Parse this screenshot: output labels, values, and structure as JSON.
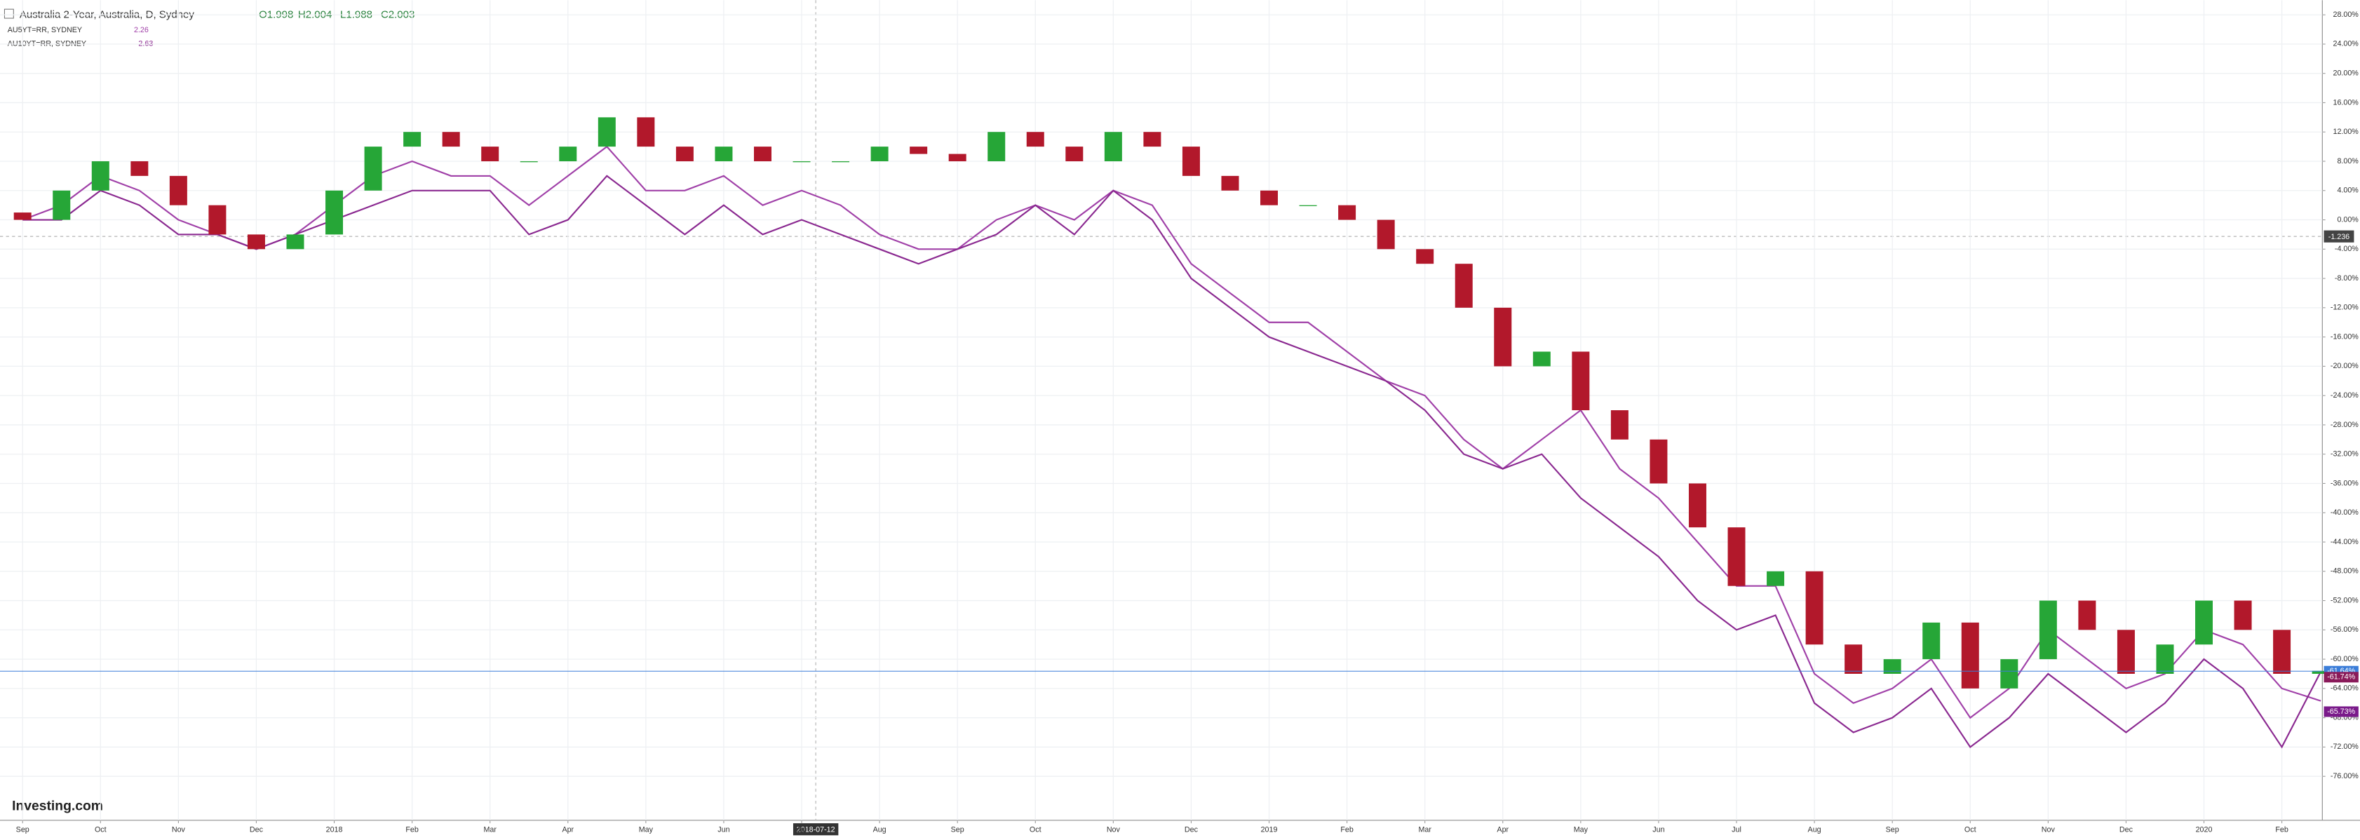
{
  "header": {
    "title": "Australia 2-Year, Australia, D, Sydney",
    "ohlc": [
      "O1.998",
      "H2.004",
      "L1.988",
      "C2.003"
    ]
  },
  "legend": [
    {
      "name": "AU5YT=RR, SYDNEY",
      "value": "2.26"
    },
    {
      "name": "AU10YT=RR, SYDNEY",
      "value": "2.63"
    }
  ],
  "logo": "Investing.com",
  "crosshair": {
    "x_label": "2018-07-12",
    "y_label": "-1.236"
  },
  "chart_data": {
    "type": "candlestick",
    "xlim": [
      -0.29,
      29.52
    ],
    "ylim": [
      -82,
      30
    ],
    "grid": true,
    "xticks": [
      {
        "value": 0,
        "label": "Sep"
      },
      {
        "value": 1,
        "label": "Oct"
      },
      {
        "value": 2,
        "label": "Nov"
      },
      {
        "value": 3,
        "label": "Dec"
      },
      {
        "value": 4,
        "label": "2018"
      },
      {
        "value": 5,
        "label": "Feb"
      },
      {
        "value": 6,
        "label": "Mar"
      },
      {
        "value": 7,
        "label": "Apr"
      },
      {
        "value": 8,
        "label": "May"
      },
      {
        "value": 9,
        "label": "Jun"
      },
      {
        "value": 10,
        "label": "Jul"
      },
      {
        "value": 11,
        "label": "Aug"
      },
      {
        "value": 12,
        "label": "Sep"
      },
      {
        "value": 13,
        "label": "Oct"
      },
      {
        "value": 14,
        "label": "Nov"
      },
      {
        "value": 15,
        "label": "Dec"
      },
      {
        "value": 16,
        "label": "2019"
      },
      {
        "value": 17,
        "label": "Feb"
      },
      {
        "value": 18,
        "label": "Mar"
      },
      {
        "value": 19,
        "label": "Apr"
      },
      {
        "value": 20,
        "label": "May"
      },
      {
        "value": 21,
        "label": "Jun"
      },
      {
        "value": 22,
        "label": "Jul"
      },
      {
        "value": 23,
        "label": "Aug"
      },
      {
        "value": 24,
        "label": "Sep"
      },
      {
        "value": 25,
        "label": "Oct"
      },
      {
        "value": 26,
        "label": "Nov"
      },
      {
        "value": 27,
        "label": "Dec"
      },
      {
        "value": 28,
        "label": "2020"
      },
      {
        "value": 29,
        "label": "Feb"
      }
    ],
    "yticks": [
      {
        "value": 28,
        "label": "28.00%"
      },
      {
        "value": 24,
        "label": "24.00%"
      },
      {
        "value": 20,
        "label": "20.00%"
      },
      {
        "value": 16,
        "label": "16.00%"
      },
      {
        "value": 12,
        "label": "12.00%"
      },
      {
        "value": 8,
        "label": "8.00%"
      },
      {
        "value": 4,
        "label": "4.00%"
      },
      {
        "value": 0,
        "label": "0.00%"
      },
      {
        "value": -4,
        "label": "-4.00%"
      },
      {
        "value": -8,
        "label": "-8.00%"
      },
      {
        "value": -12,
        "label": "-12.00%"
      },
      {
        "value": -16,
        "label": "-16.00%"
      },
      {
        "value": -20,
        "label": "-20.00%"
      },
      {
        "value": -24,
        "label": "-24.00%"
      },
      {
        "value": -28,
        "label": "-28.00%"
      },
      {
        "value": -32,
        "label": "-32.00%"
      },
      {
        "value": -36,
        "label": "-36.00%"
      },
      {
        "value": -40,
        "label": "-40.00%"
      },
      {
        "value": -44,
        "label": "-44.00%"
      },
      {
        "value": -48,
        "label": "-48.00%"
      },
      {
        "value": -52,
        "label": "-52.00%"
      },
      {
        "value": -56,
        "label": "-56.00%"
      },
      {
        "value": -60,
        "label": "-60.00%"
      },
      {
        "value": -64,
        "label": "-64.00%"
      },
      {
        "value": -68,
        "label": "-68.00%"
      },
      {
        "value": -72,
        "label": "-72.00%"
      },
      {
        "value": -76,
        "label": "-76.00%"
      }
    ],
    "x": [
      0,
      0.5,
      1,
      1.5,
      2,
      2.5,
      3,
      3.5,
      4,
      4.5,
      5,
      5.5,
      6,
      6.5,
      7,
      7.5,
      8,
      8.5,
      9,
      9.5,
      10,
      10.5,
      11,
      11.5,
      12,
      12.5,
      13,
      13.5,
      14,
      14.5,
      15,
      15.5,
      16,
      16.5,
      17,
      17.5,
      18,
      18.5,
      19,
      19.5,
      20,
      20.5,
      21,
      21.5,
      22,
      22.5,
      23,
      23.5,
      24,
      24.5,
      25,
      25.5,
      26,
      26.5,
      27,
      27.5,
      28,
      28.5,
      29,
      29.5
    ],
    "open": [
      1,
      0,
      4,
      8,
      6,
      2,
      -2,
      -4,
      -2,
      4,
      10,
      12,
      10,
      8,
      8,
      10,
      14,
      10,
      8,
      10,
      8,
      8,
      8,
      10,
      9,
      8,
      12,
      10,
      8,
      12,
      10,
      6,
      4,
      2,
      2,
      0,
      -4,
      -6,
      -12,
      -20,
      -18,
      -26,
      -30,
      -36,
      -42,
      -50,
      -48,
      -58,
      -62,
      -60,
      -55,
      -64,
      -60,
      -52,
      -56,
      -62,
      -58,
      -52,
      -56,
      -62
    ],
    "close": [
      0,
      4,
      8,
      6,
      2,
      -2,
      -4,
      -2,
      4,
      10,
      12,
      10,
      8,
      8,
      10,
      14,
      10,
      8,
      10,
      8,
      8,
      8,
      10,
      9,
      8,
      12,
      10,
      8,
      12,
      10,
      6,
      4,
      2,
      2,
      0,
      -4,
      -6,
      -12,
      -20,
      -18,
      -26,
      -30,
      -36,
      -42,
      -50,
      -48,
      -58,
      -62,
      -60,
      -55,
      -64,
      -60,
      -52,
      -56,
      -62,
      -58,
      -52,
      -56,
      -62,
      -61.6
    ],
    "up_color": "#26a637",
    "down_color": "#b2182b",
    "series": [
      {
        "name": "AU5YT=RR, SYDNEY",
        "color": "#a040a8",
        "values": [
          0,
          2,
          6,
          4,
          0,
          -2,
          -4,
          -2,
          2,
          6,
          8,
          6,
          6,
          2,
          6,
          10,
          4,
          4,
          6,
          2,
          4,
          2,
          -2,
          -4,
          -4,
          0,
          2,
          0,
          4,
          2,
          -6,
          -10,
          -14,
          -14,
          -18,
          -22,
          -24,
          -30,
          -34,
          -30,
          -26,
          -34,
          -38,
          -44,
          -50,
          -50,
          -62,
          -66,
          -64,
          -60,
          -68,
          -64,
          -56,
          -60,
          -64,
          -62,
          -56,
          -58,
          -64,
          -65.7
        ]
      },
      {
        "name": "AU10YT=RR, SYDNEY",
        "color": "#8a2890",
        "values": [
          0,
          0,
          4,
          2,
          -2,
          -2,
          -4,
          -2,
          0,
          2,
          4,
          4,
          4,
          -2,
          0,
          6,
          2,
          -2,
          2,
          -2,
          0,
          -2,
          -4,
          -6,
          -4,
          -2,
          2,
          -2,
          4,
          0,
          -8,
          -12,
          -16,
          -18,
          -20,
          -22,
          -26,
          -32,
          -34,
          -32,
          -38,
          -42,
          -46,
          -52,
          -56,
          -54,
          -66,
          -70,
          -68,
          -64,
          -72,
          -68,
          -62,
          -66,
          -70,
          -66,
          -60,
          -64,
          -72,
          -61.7
        ]
      }
    ],
    "price_labels": [
      {
        "value": -61.64,
        "label": "-61.64%",
        "color": "#3b7dd8"
      },
      {
        "value": -61.74,
        "label": "-61.74%",
        "color": "#8a1a5a"
      },
      {
        "value": -65.73,
        "label": "-65.73%",
        "color": "#7a1a8a"
      }
    ]
  }
}
